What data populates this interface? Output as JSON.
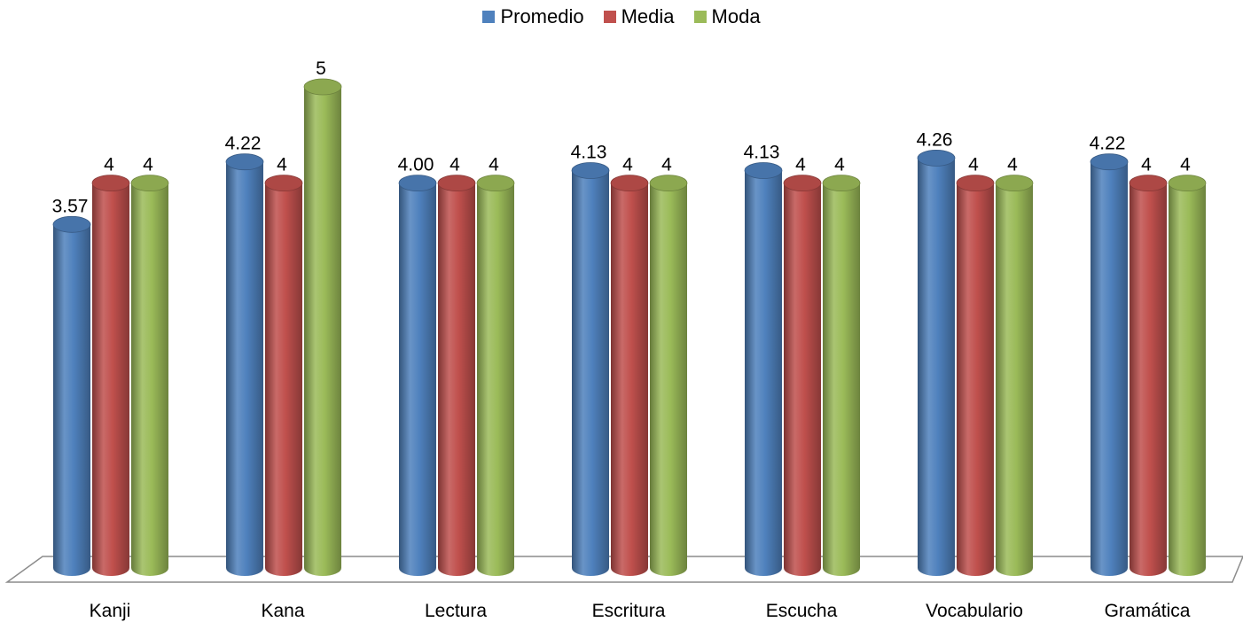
{
  "chart_data": {
    "type": "bar",
    "categories": [
      "Kanji",
      "Kana",
      "Lectura",
      "Escritura",
      "Escucha",
      "Vocabulario",
      "Gramática"
    ],
    "series": [
      {
        "name": "Promedio",
        "values": [
          3.57,
          4.22,
          4.0,
          4.13,
          4.13,
          4.26,
          4.22
        ],
        "labels": [
          "3.57",
          "4.22",
          "4.00",
          "4.13",
          "4.13",
          "4.26",
          "4.22"
        ],
        "color": "#4F81BD"
      },
      {
        "name": "Media",
        "values": [
          4,
          4,
          4,
          4,
          4,
          4,
          4
        ],
        "labels": [
          "4",
          "4",
          "4",
          "4",
          "4",
          "4",
          "4"
        ],
        "color": "#C0504D"
      },
      {
        "name": "Moda",
        "values": [
          4,
          5,
          4,
          4,
          4,
          4,
          4
        ],
        "labels": [
          "4",
          "5",
          "4",
          "4",
          "4",
          "4",
          "4"
        ],
        "color": "#9BBB59"
      }
    ],
    "title": "",
    "xlabel": "",
    "ylabel": "",
    "ylim": [
      0,
      5
    ],
    "grid": false,
    "legend": "top-center",
    "style": "3d-cylinder"
  }
}
